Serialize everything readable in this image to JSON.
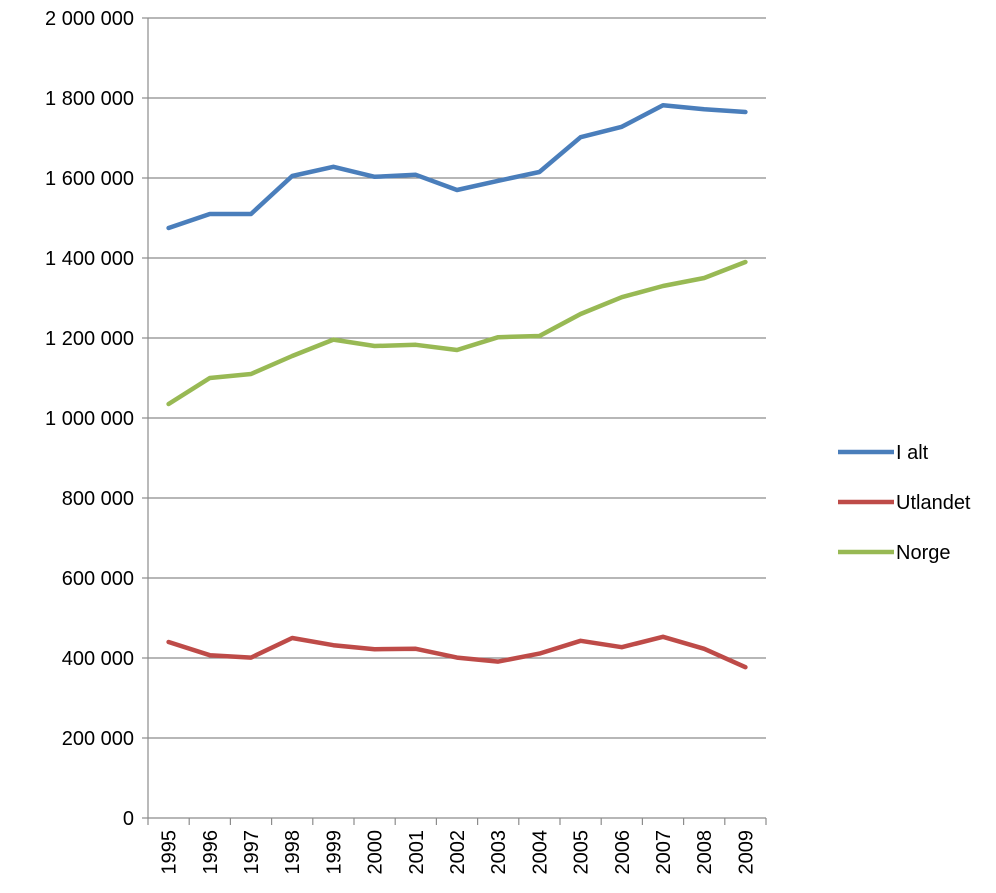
{
  "chart_data": {
    "type": "line",
    "title": "",
    "xlabel": "",
    "ylabel": "",
    "categories": [
      "1995",
      "1996",
      "1997",
      "1998",
      "1999",
      "2000",
      "2001",
      "2002",
      "2003",
      "2004",
      "2005",
      "2006",
      "2007",
      "2008",
      "2009"
    ],
    "ylim": [
      0,
      2000000
    ],
    "y_ticks": [
      0,
      200000,
      400000,
      600000,
      800000,
      1000000,
      1200000,
      1400000,
      1600000,
      1800000,
      2000000
    ],
    "y_tick_labels": [
      "0",
      "200 000",
      "400 000",
      "600 000",
      "800 000",
      "1 000 000",
      "1 200 000",
      "1 400 000",
      "1 600 000",
      "1 800 000",
      "2 000 000"
    ],
    "grid": true,
    "legend_position": "right",
    "series": [
      {
        "name": "I alt",
        "color": "#4a7ebb",
        "values": [
          1475000,
          1510000,
          1510000,
          1605000,
          1628000,
          1603000,
          1608000,
          1570000,
          1593000,
          1615000,
          1702000,
          1728000,
          1782000,
          1772000,
          1765000
        ]
      },
      {
        "name": "Utlandet",
        "color": "#be4b48",
        "values": [
          440000,
          407000,
          401000,
          450000,
          432000,
          422000,
          423000,
          401000,
          391000,
          411000,
          443000,
          427000,
          453000,
          423000,
          377000
        ]
      },
      {
        "name": "Norge",
        "color": "#98b954",
        "values": [
          1035000,
          1100000,
          1110000,
          1155000,
          1196000,
          1180000,
          1183000,
          1170000,
          1202000,
          1205000,
          1260000,
          1302000,
          1330000,
          1350000,
          1390000
        ]
      }
    ]
  }
}
